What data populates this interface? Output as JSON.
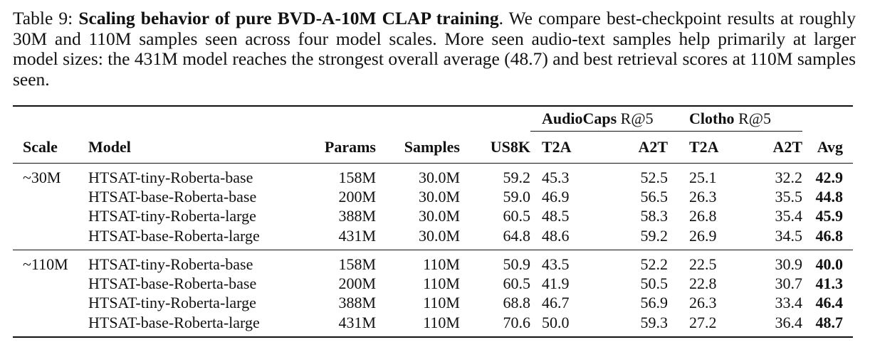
{
  "caption": {
    "label": "Table 9:",
    "title": "Scaling behavior of pure BVD-A-10M CLAP training",
    "body": ". We compare best-checkpoint results at roughly 30M and 110M samples seen across four model scales. More seen audio-text samples help primarily at larger model sizes: the 431M model reaches the strongest overall average (48.7) and best retrieval scores at 110M samples seen."
  },
  "table": {
    "group_headers": {
      "audiocaps": {
        "bold": "AudioCaps",
        "suffix": " R@5"
      },
      "clotho": {
        "bold": "Clotho",
        "suffix": " R@5"
      }
    },
    "columns": {
      "scale": "Scale",
      "model": "Model",
      "params": "Params",
      "samples": "Samples",
      "us8k": "US8K",
      "ac_t2a": "T2A",
      "ac_a2t": "A2T",
      "cl_t2a": "T2A",
      "cl_a2t": "A2T",
      "avg": "Avg"
    },
    "groups": [
      {
        "scale": "~30M",
        "rows": [
          {
            "model": "HTSAT-tiny-Roberta-base",
            "params": "158M",
            "samples": "30.0M",
            "us8k": "59.2",
            "ac_t2a": "45.3",
            "ac_a2t": "52.5",
            "cl_t2a": "25.1",
            "cl_a2t": "32.2",
            "avg": "42.9"
          },
          {
            "model": "HTSAT-base-Roberta-base",
            "params": "200M",
            "samples": "30.0M",
            "us8k": "59.0",
            "ac_t2a": "46.9",
            "ac_a2t": "56.5",
            "cl_t2a": "26.3",
            "cl_a2t": "35.5",
            "avg": "44.8"
          },
          {
            "model": "HTSAT-tiny-Roberta-large",
            "params": "388M",
            "samples": "30.0M",
            "us8k": "60.5",
            "ac_t2a": "48.5",
            "ac_a2t": "58.3",
            "cl_t2a": "26.8",
            "cl_a2t": "35.4",
            "avg": "45.9"
          },
          {
            "model": "HTSAT-base-Roberta-large",
            "params": "431M",
            "samples": "30.0M",
            "us8k": "64.8",
            "ac_t2a": "48.6",
            "ac_a2t": "59.2",
            "cl_t2a": "26.9",
            "cl_a2t": "34.5",
            "avg": "46.8"
          }
        ]
      },
      {
        "scale": "~110M",
        "rows": [
          {
            "model": "HTSAT-tiny-Roberta-base",
            "params": "158M",
            "samples": "110M",
            "us8k": "50.9",
            "ac_t2a": "43.5",
            "ac_a2t": "52.2",
            "cl_t2a": "22.5",
            "cl_a2t": "30.9",
            "avg": "40.0"
          },
          {
            "model": "HTSAT-base-Roberta-base",
            "params": "200M",
            "samples": "110M",
            "us8k": "60.5",
            "ac_t2a": "41.9",
            "ac_a2t": "50.5",
            "cl_t2a": "22.8",
            "cl_a2t": "30.7",
            "avg": "41.3"
          },
          {
            "model": "HTSAT-tiny-Roberta-large",
            "params": "388M",
            "samples": "110M",
            "us8k": "68.8",
            "ac_t2a": "46.7",
            "ac_a2t": "56.9",
            "cl_t2a": "26.3",
            "cl_a2t": "33.4",
            "avg": "46.4"
          },
          {
            "model": "HTSAT-base-Roberta-large",
            "params": "431M",
            "samples": "110M",
            "us8k": "70.6",
            "ac_t2a": "50.0",
            "ac_a2t": "59.3",
            "cl_t2a": "27.2",
            "cl_a2t": "36.4",
            "avg": "48.7"
          }
        ]
      }
    ]
  }
}
